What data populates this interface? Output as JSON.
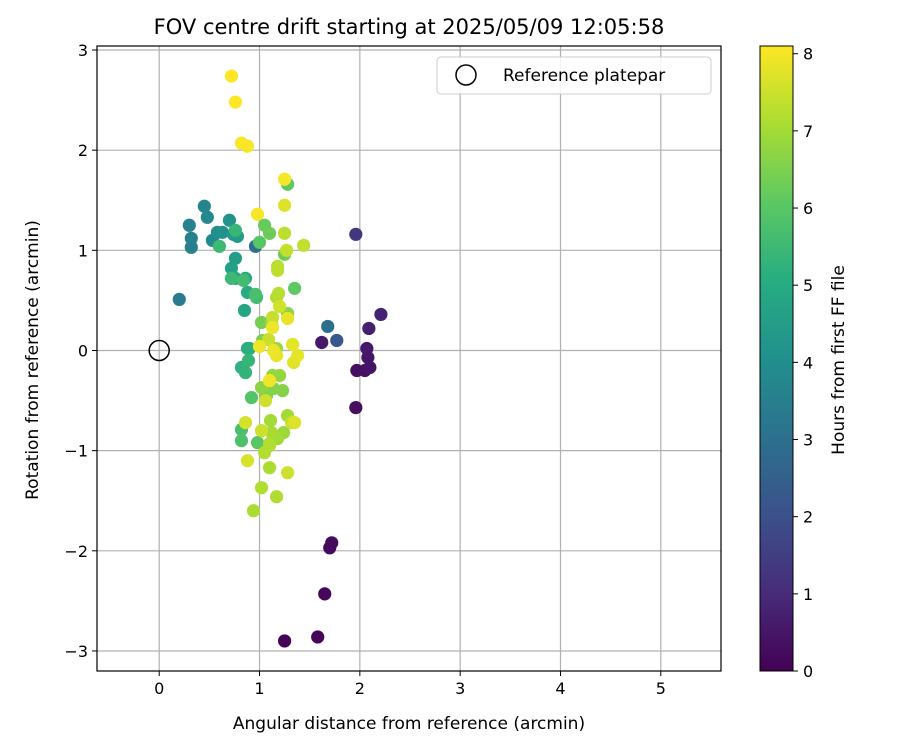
{
  "chart_data": {
    "type": "scatter",
    "title": "FOV centre drift starting at 2025/05/09 12:05:58",
    "xlabel": "Angular distance from reference (arcmin)",
    "ylabel": "Rotation from reference (arcmin)",
    "xlim": [
      -0.62,
      5.6
    ],
    "ylim": [
      -3.2,
      3.04
    ],
    "xticks": [
      0,
      1,
      2,
      3,
      4,
      5
    ],
    "yticks": [
      -3,
      -2,
      -1,
      0,
      1,
      2,
      3
    ],
    "tick_labels_x": [
      "0",
      "1",
      "2",
      "3",
      "4",
      "5"
    ],
    "tick_labels_y": [
      "−3",
      "−2",
      "−1",
      "0",
      "1",
      "2",
      "3"
    ],
    "grid": true,
    "legend": {
      "placement": "top-right",
      "entries": [
        "Reference platepar"
      ]
    },
    "reference_point": {
      "x": 0,
      "y": 0
    },
    "colorbar": {
      "label": "Hours from first FF file",
      "range": [
        0,
        8.1
      ],
      "ticks": [
        0,
        1,
        2,
        3,
        4,
        5,
        6,
        7,
        8
      ],
      "tick_labels": [
        "0",
        "1",
        "2",
        "3",
        "4",
        "5",
        "6",
        "7",
        "8"
      ],
      "colormap": "viridis"
    },
    "points": [
      [
        1.25,
        -2.9,
        0.05
      ],
      [
        1.58,
        -2.86,
        0.1
      ],
      [
        1.65,
        -2.43,
        0.15
      ],
      [
        1.7,
        -1.97,
        0.2
      ],
      [
        1.72,
        -1.92,
        0.25
      ],
      [
        1.96,
        -0.57,
        0.3
      ],
      [
        1.97,
        -0.2,
        0.35
      ],
      [
        2.05,
        -0.2,
        0.4
      ],
      [
        2.1,
        -0.17,
        0.45
      ],
      [
        2.08,
        -0.07,
        0.5
      ],
      [
        2.07,
        0.02,
        0.55
      ],
      [
        1.62,
        0.08,
        0.6
      ],
      [
        2.09,
        0.22,
        0.7
      ],
      [
        2.21,
        0.36,
        0.8
      ],
      [
        1.96,
        1.16,
        1.3
      ],
      [
        1.77,
        0.1,
        2.2
      ],
      [
        1.68,
        0.24,
        2.9
      ],
      [
        0.96,
        1.04,
        3.0
      ],
      [
        0.2,
        0.51,
        3.4
      ],
      [
        0.32,
        1.03,
        3.5
      ],
      [
        0.32,
        1.12,
        3.55
      ],
      [
        0.3,
        1.25,
        3.6
      ],
      [
        0.45,
        1.44,
        3.7
      ],
      [
        0.48,
        1.33,
        3.8
      ],
      [
        0.53,
        1.1,
        3.9
      ],
      [
        0.58,
        1.18,
        4.0
      ],
      [
        0.63,
        1.18,
        4.1
      ],
      [
        0.7,
        1.3,
        4.2
      ],
      [
        0.74,
        1.16,
        4.3
      ],
      [
        0.78,
        1.14,
        4.4
      ],
      [
        0.76,
        0.92,
        4.5
      ],
      [
        0.72,
        0.82,
        4.6
      ],
      [
        0.76,
        0.72,
        4.7
      ],
      [
        0.85,
        0.4,
        4.8
      ],
      [
        0.86,
        0.72,
        4.9
      ],
      [
        0.88,
        0.58,
        5.0
      ],
      [
        0.9,
        0.02,
        5.1
      ],
      [
        0.88,
        0.02,
        5.15
      ],
      [
        0.82,
        -0.17,
        5.2
      ],
      [
        0.86,
        -0.22,
        5.3
      ],
      [
        0.89,
        -0.1,
        5.35
      ],
      [
        0.76,
        1.2,
        5.4
      ],
      [
        0.6,
        1.04,
        5.5
      ],
      [
        0.72,
        0.72,
        5.5
      ],
      [
        0.84,
        0.7,
        5.6
      ],
      [
        0.97,
        0.53,
        5.6
      ],
      [
        0.96,
        0.56,
        5.7
      ],
      [
        0.82,
        -0.79,
        5.7
      ],
      [
        0.82,
        -0.9,
        5.8
      ],
      [
        0.92,
        -0.47,
        5.9
      ],
      [
        0.98,
        -0.92,
        6.0
      ],
      [
        1.0,
        1.08,
        6.0
      ],
      [
        1.35,
        0.62,
        6.1
      ],
      [
        1.28,
        1.66,
        6.1
      ],
      [
        1.05,
        1.25,
        6.2
      ],
      [
        1.1,
        1.17,
        6.3
      ],
      [
        1.25,
        0.96,
        6.3
      ],
      [
        1.02,
        0.28,
        6.4
      ],
      [
        1.03,
        0.1,
        6.5
      ],
      [
        1.07,
        -0.45,
        6.5
      ],
      [
        1.14,
        -0.38,
        6.6
      ],
      [
        1.23,
        -0.4,
        6.6
      ],
      [
        1.28,
        0.37,
        6.7
      ],
      [
        1.02,
        -0.37,
        6.7
      ],
      [
        1.13,
        -0.25,
        6.8
      ],
      [
        1.2,
        -0.25,
        6.8
      ],
      [
        1.17,
        0.02,
        6.9
      ],
      [
        1.12,
        0.27,
        6.9
      ],
      [
        1.24,
        -0.82,
        6.9
      ],
      [
        1.18,
        -0.88,
        7.0
      ],
      [
        1.28,
        -0.65,
        7.0
      ],
      [
        1.11,
        -0.7,
        7.0
      ],
      [
        1.12,
        -0.82,
        7.05
      ],
      [
        1.1,
        -0.93,
        7.1
      ],
      [
        1.1,
        -1.17,
        7.1
      ],
      [
        0.94,
        -1.6,
        7.1
      ],
      [
        1.02,
        -1.37,
        7.15
      ],
      [
        1.17,
        -1.46,
        7.15
      ],
      [
        1.05,
        -1.02,
        7.2
      ],
      [
        1.1,
        -0.95,
        7.2
      ],
      [
        1.17,
        0.53,
        7.2
      ],
      [
        1.19,
        0.57,
        7.25
      ],
      [
        1.18,
        0.8,
        7.3
      ],
      [
        1.18,
        0.84,
        7.3
      ],
      [
        1.25,
        1.17,
        7.3
      ],
      [
        1.44,
        1.05,
        7.35
      ],
      [
        1.27,
        1.0,
        7.4
      ],
      [
        1.13,
        0.33,
        7.4
      ],
      [
        1.09,
        0.11,
        7.45
      ],
      [
        1.32,
        -0.72,
        7.45
      ],
      [
        1.28,
        -1.22,
        7.5
      ],
      [
        1.02,
        -0.8,
        7.5
      ],
      [
        1.06,
        -0.5,
        7.5
      ],
      [
        1.2,
        0.44,
        7.55
      ],
      [
        0.86,
        -0.72,
        7.6
      ],
      [
        0.88,
        -1.1,
        7.65
      ],
      [
        1.25,
        1.45,
        7.7
      ],
      [
        1.35,
        -0.72,
        7.7
      ],
      [
        1.34,
        -0.12,
        7.75
      ],
      [
        1.38,
        -0.05,
        7.8
      ],
      [
        1.33,
        0.06,
        7.8
      ],
      [
        1.28,
        0.32,
        7.85
      ],
      [
        1.17,
        -0.05,
        7.85
      ],
      [
        1.14,
        0.0,
        7.9
      ],
      [
        1.13,
        0.23,
        7.9
      ],
      [
        1.0,
        0.04,
        7.95
      ],
      [
        1.1,
        -0.3,
        7.95
      ],
      [
        0.98,
        1.36,
        8.0
      ],
      [
        1.25,
        1.71,
        8.0
      ],
      [
        0.82,
        2.07,
        8.05
      ],
      [
        0.88,
        2.04,
        8.05
      ],
      [
        0.76,
        2.48,
        8.1
      ],
      [
        0.72,
        2.74,
        8.1
      ]
    ]
  }
}
